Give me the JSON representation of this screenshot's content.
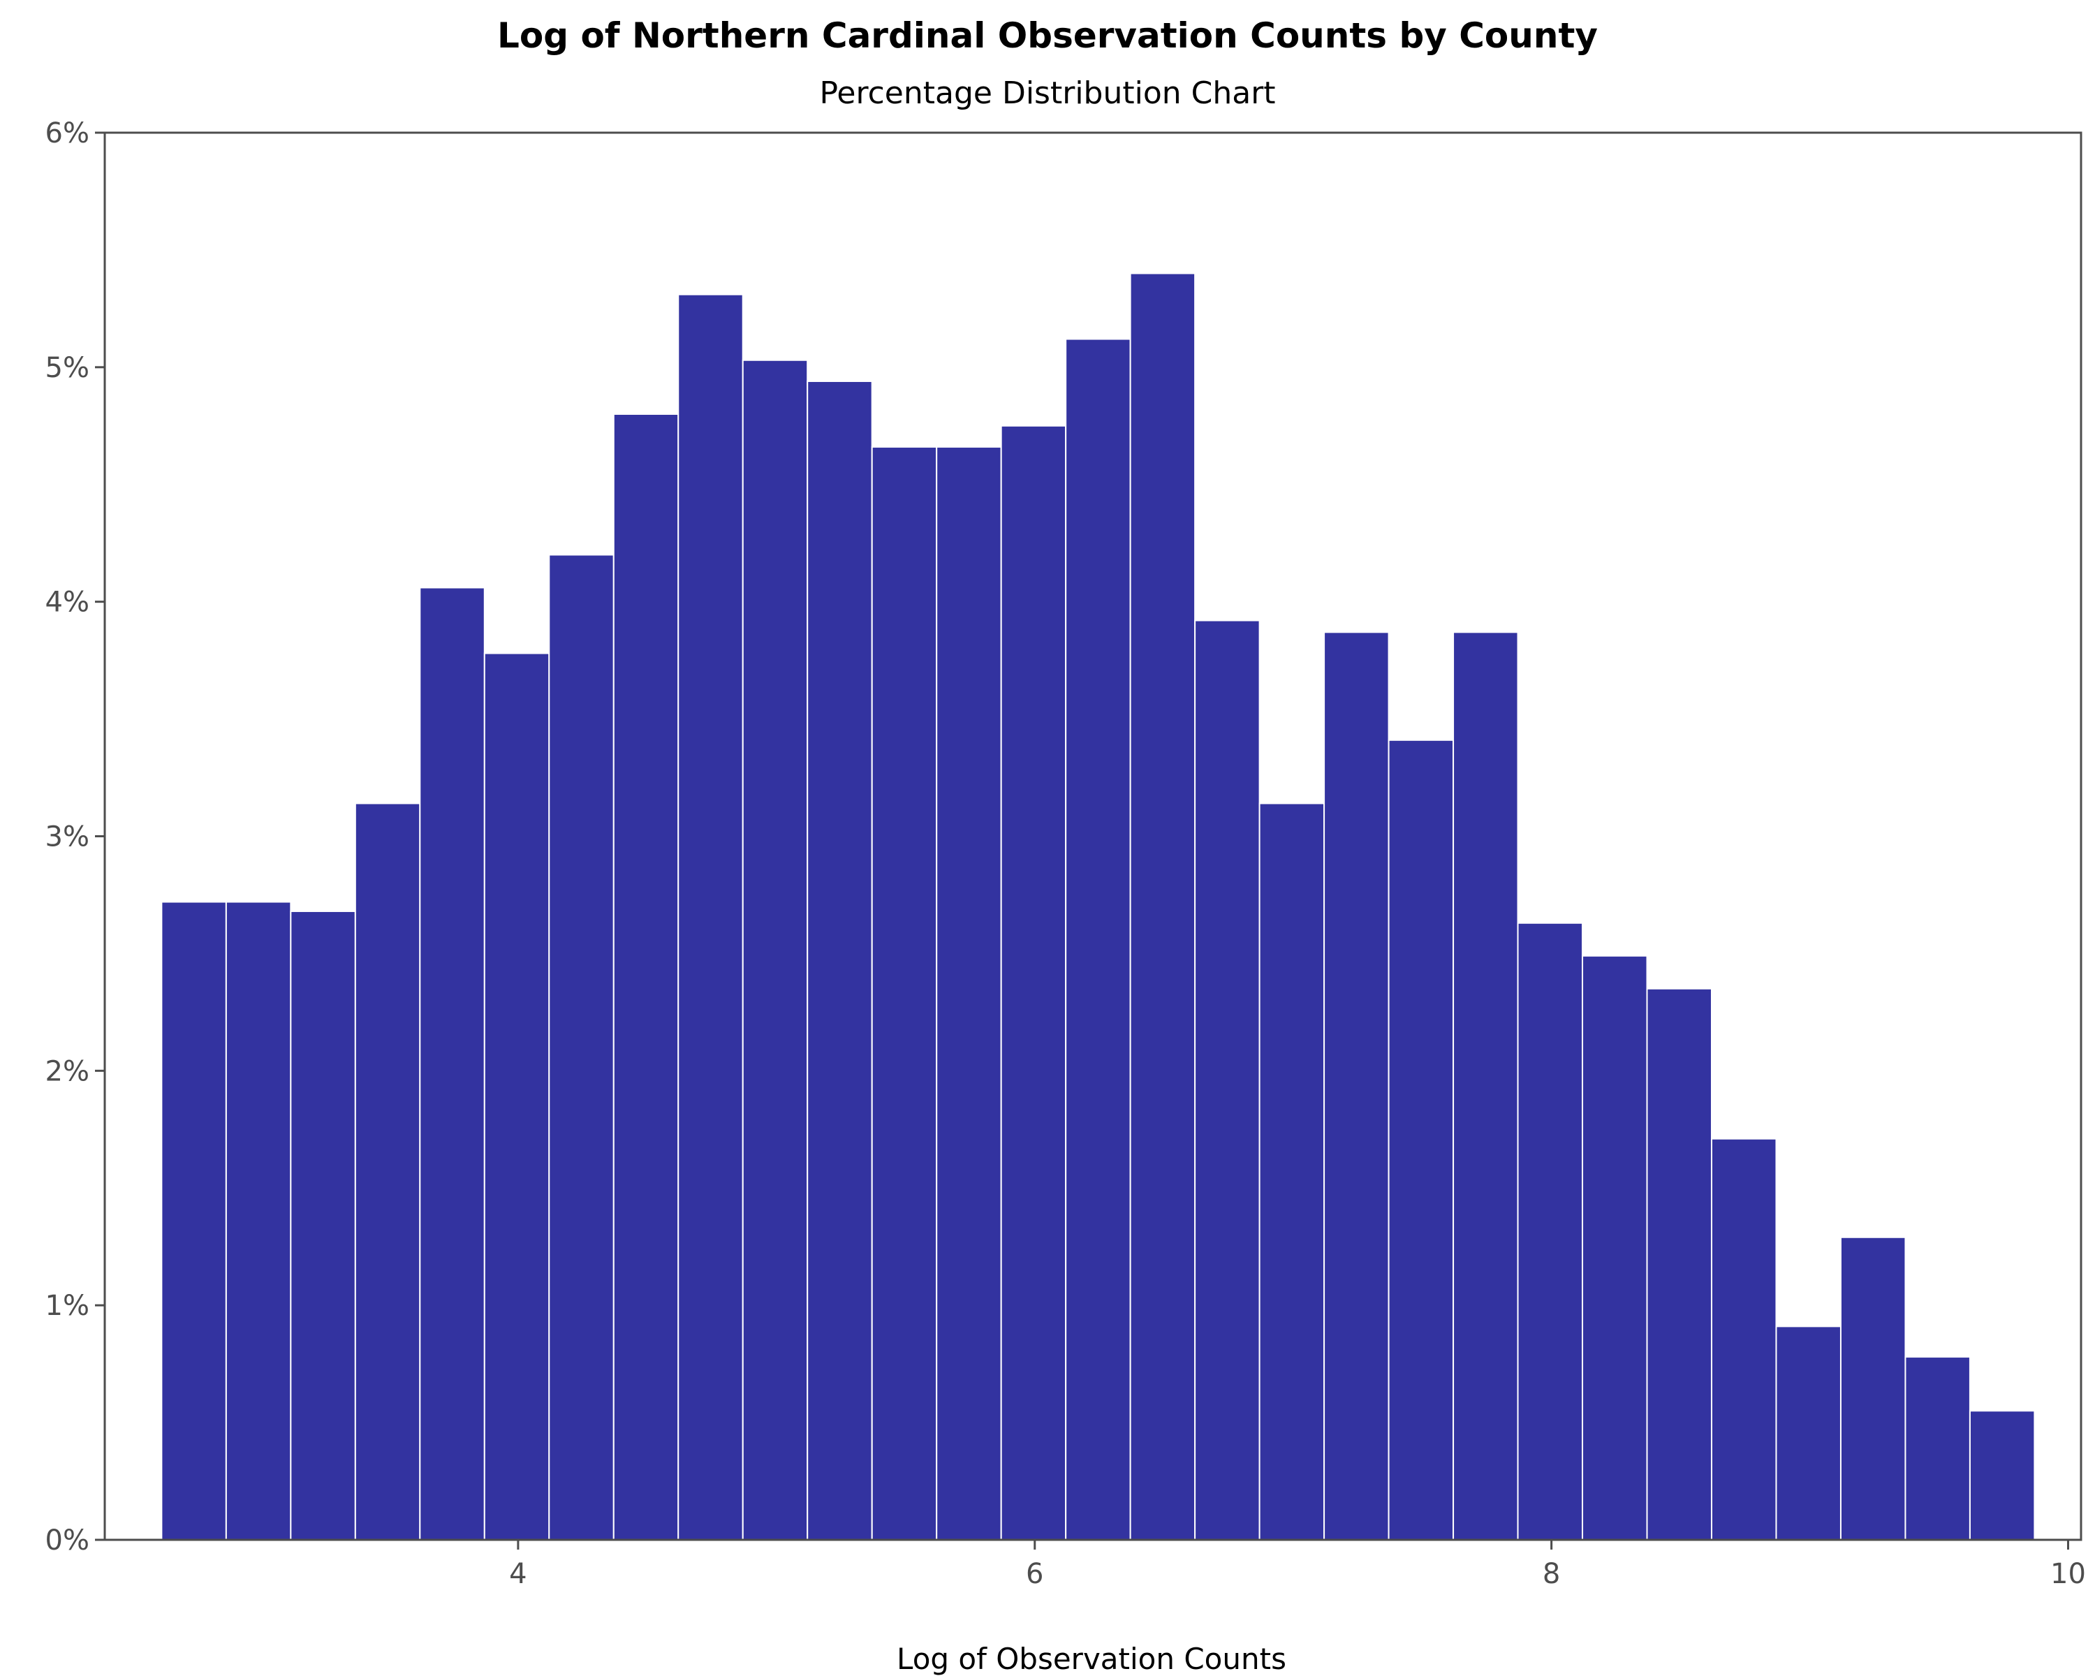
{
  "chart_data": {
    "type": "bar",
    "title": "Log of Northern Cardinal Observation Counts by County",
    "subtitle": "Percentage Distribution Chart",
    "xlabel": "Log of Observation Counts",
    "ylabel": "",
    "xlim": [
      2.4,
      10.05
    ],
    "ylim": [
      0,
      6
    ],
    "x_ticks": [
      4,
      6,
      8,
      10
    ],
    "y_ticks": [
      0,
      1,
      2,
      3,
      4,
      5,
      6
    ],
    "y_tick_labels": [
      "0%",
      "1%",
      "2%",
      "3%",
      "4%",
      "5%",
      "6%"
    ],
    "bin_width": 0.25,
    "bin_start": 2.62,
    "values": [
      2.72,
      2.72,
      2.68,
      3.14,
      4.06,
      3.78,
      4.2,
      4.8,
      5.31,
      5.03,
      4.94,
      4.66,
      4.66,
      4.75,
      5.12,
      5.4,
      3.92,
      3.14,
      3.87,
      3.41,
      3.87,
      2.63,
      2.49,
      2.35,
      1.71,
      0.91,
      1.29,
      0.78,
      0.55
    ],
    "bar_color": "#3333a0",
    "bar_edge_color": "#ffffff",
    "axis_color": "#4d4d4d",
    "grid": false
  }
}
